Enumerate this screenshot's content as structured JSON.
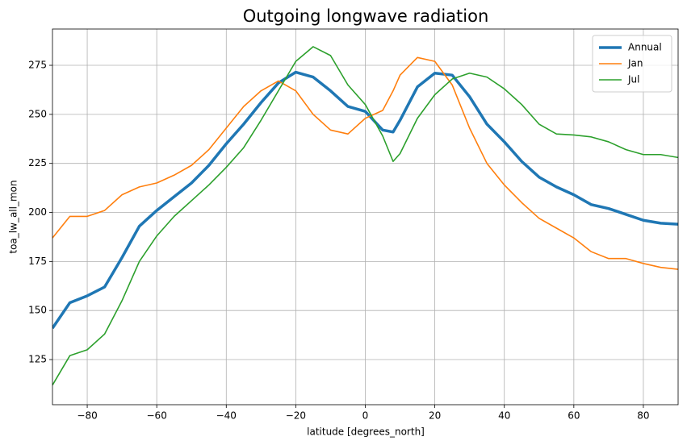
{
  "chart_data": {
    "type": "line",
    "title": "Outgoing longwave radiation",
    "xlabel": "latitude [degrees_north]",
    "ylabel": "toa_lw_all_mon",
    "x": [
      -90,
      -85,
      -80,
      -75,
      -70,
      -65,
      -60,
      -55,
      -50,
      -45,
      -40,
      -35,
      -30,
      -25,
      -20,
      -15,
      -10,
      -5,
      0,
      5,
      8,
      10,
      15,
      20,
      25,
      30,
      35,
      40,
      45,
      50,
      55,
      60,
      65,
      70,
      75,
      80,
      85,
      90
    ],
    "series": [
      {
        "name": "Annual",
        "color": "#1f77b4",
        "values": [
          141,
          154,
          157.5,
          162,
          177,
          193,
          201,
          208,
          215,
          224,
          235,
          245,
          256,
          266,
          271.5,
          269,
          262,
          254,
          251.5,
          242,
          241,
          247,
          264,
          271,
          270,
          259,
          245,
          236,
          226,
          218,
          213,
          209,
          204,
          202,
          199,
          196,
          194.5,
          194
        ]
      },
      {
        "name": "Jan",
        "color": "#ff7f0e",
        "values": [
          187,
          198,
          198,
          201,
          209,
          213,
          215,
          219,
          224,
          232,
          243,
          254,
          262,
          267,
          262,
          250,
          242,
          240,
          248,
          252,
          262,
          270,
          279,
          277,
          265,
          243,
          225,
          214,
          205,
          197,
          192,
          187,
          180,
          176.5,
          176.5,
          174,
          172,
          171
        ]
      },
      {
        "name": "Jul",
        "color": "#2ca02c",
        "values": [
          112,
          127,
          130,
          138,
          155,
          175,
          188,
          198,
          206,
          214,
          223,
          233,
          247,
          262,
          277,
          284.5,
          280,
          265,
          255,
          239,
          226,
          230,
          248,
          260,
          268,
          271,
          269,
          263,
          255,
          245,
          240,
          239.5,
          238.5,
          236,
          232,
          229.5,
          229.5,
          228
        ]
      }
    ],
    "xlim": [
      -90,
      90
    ],
    "ylim": [
      102,
      293.5
    ],
    "xticks": [
      {
        "value": -80,
        "label": "−80"
      },
      {
        "value": -60,
        "label": "−60"
      },
      {
        "value": -40,
        "label": "−40"
      },
      {
        "value": -20,
        "label": "−20"
      },
      0,
      20,
      40,
      60,
      80
    ],
    "yticks": [
      125,
      150,
      175,
      200,
      225,
      250,
      275
    ],
    "grid": true,
    "legend": "upper right"
  }
}
